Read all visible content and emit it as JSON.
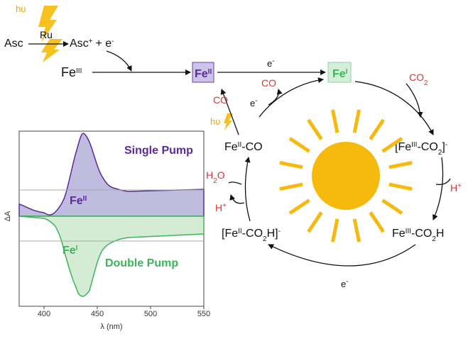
{
  "photo": {
    "hv": "hυ",
    "asc": "Asc",
    "ru": "Ru",
    "asc_plus": [
      "Asc",
      "+"
    ],
    "plus_e": [
      "+ e",
      "-"
    ],
    "fe3": [
      "Fe",
      "III"
    ]
  },
  "cycle": {
    "fe2_box": [
      "Fe",
      "II"
    ],
    "e_top": [
      "e",
      "-"
    ],
    "fe1_box": [
      "Fe",
      "I"
    ],
    "co2": [
      "CO",
      "2"
    ],
    "fe3co2": [
      "[Fe",
      "III",
      "-CO",
      "2",
      "]",
      "-"
    ],
    "h_plus_right": [
      "H",
      "+"
    ],
    "fe3co2h": [
      "Fe",
      "III",
      "-CO",
      "2",
      "H"
    ],
    "e_bottom": [
      "e",
      "-"
    ],
    "fe2co2h": [
      "[Fe",
      "II",
      "-CO",
      "2",
      "H]",
      "-"
    ],
    "h2o": [
      "H",
      "2",
      "O"
    ],
    "h_plus_left": [
      "H",
      "+"
    ],
    "fe2co": [
      "Fe",
      "II",
      "-CO"
    ],
    "hv": "hυ",
    "co_left": "CO",
    "e_small": [
      "e",
      "-"
    ],
    "co_out": "CO"
  },
  "spectrum": {
    "single_pump": "Single Pump",
    "double_pump": "Double Pump",
    "fe2": [
      "Fe",
      "II"
    ],
    "fe1": [
      "Fe",
      "I"
    ],
    "y_label": "ΔA",
    "x_label": "λ (nm)",
    "xticks": [
      400,
      450,
      500,
      550
    ]
  }
}
